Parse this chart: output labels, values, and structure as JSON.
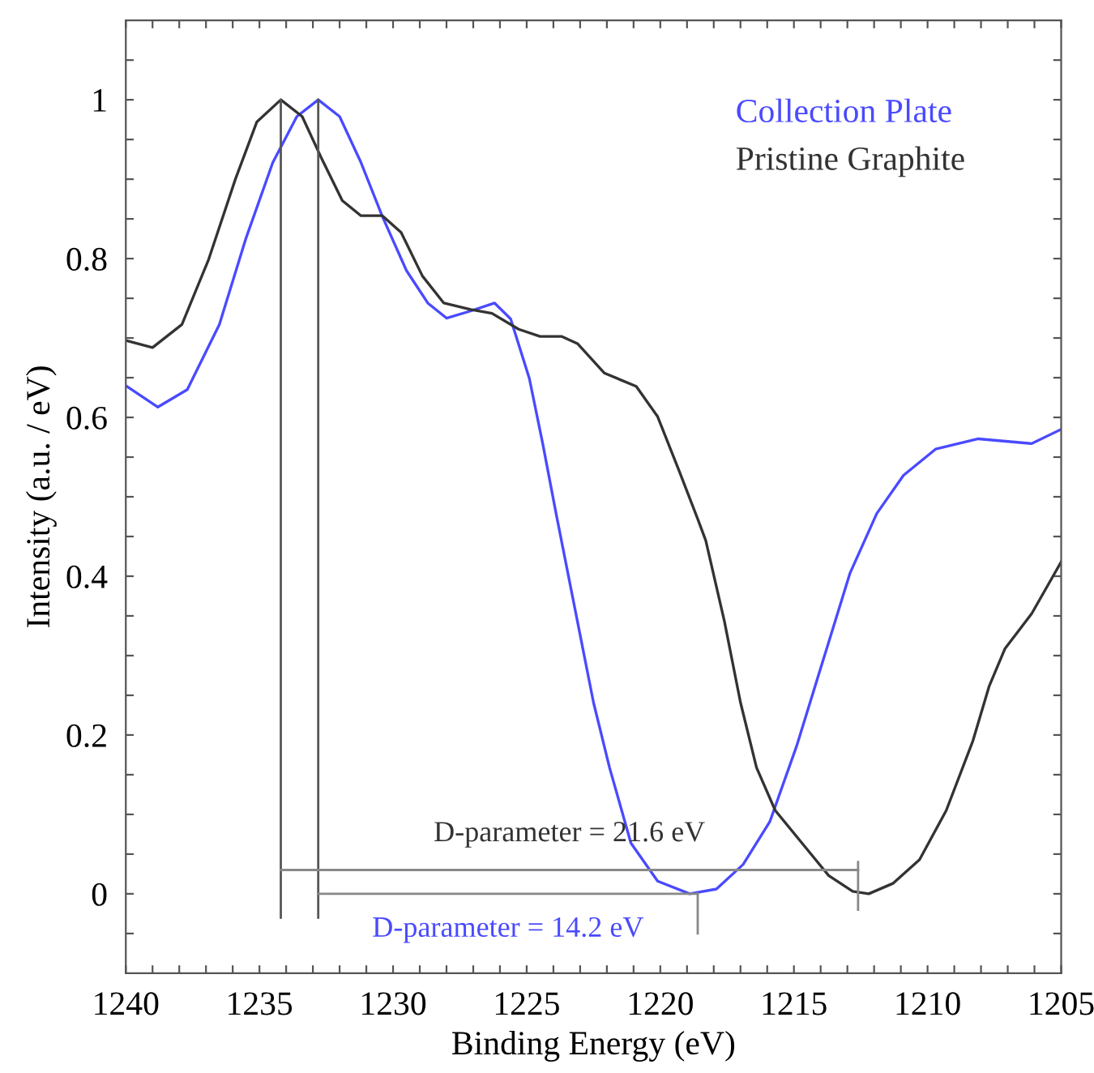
{
  "chart_data": {
    "type": "line",
    "xlabel": "Binding Energy (eV)",
    "ylabel": "Intensity (a.u. / eV)",
    "xlim": [
      1240,
      1205
    ],
    "ylim": [
      -0.1,
      1.1
    ],
    "xticks": [
      1240,
      {
        "value": 1239,
        "label": null
      },
      {
        "value": 1238,
        "label": null
      },
      {
        "value": 1237,
        "label": null
      },
      {
        "value": 1236,
        "label": null
      },
      1235,
      {
        "value": 1234,
        "label": null
      },
      {
        "value": 1233,
        "label": null
      },
      {
        "value": 1232,
        "label": null
      },
      {
        "value": 1231,
        "label": null
      },
      1230,
      {
        "value": 1229,
        "label": null
      },
      {
        "value": 1228,
        "label": null
      },
      {
        "value": 1227,
        "label": null
      },
      {
        "value": 1226,
        "label": null
      },
      1225,
      {
        "value": 1224,
        "label": null
      },
      {
        "value": 1223,
        "label": null
      },
      {
        "value": 1222,
        "label": null
      },
      {
        "value": 1221,
        "label": null
      },
      1220,
      {
        "value": 1219,
        "label": null
      },
      {
        "value": 1218,
        "label": null
      },
      {
        "value": 1217,
        "label": null
      },
      {
        "value": 1216,
        "label": null
      },
      1215,
      {
        "value": 1214,
        "label": null
      },
      {
        "value": 1213,
        "label": null
      },
      {
        "value": 1212,
        "label": null
      },
      {
        "value": 1211,
        "label": null
      },
      1210,
      {
        "value": 1209,
        "label": null
      },
      {
        "value": 1208,
        "label": null
      },
      {
        "value": 1207,
        "label": null
      },
      {
        "value": 1206,
        "label": null
      },
      1205
    ],
    "yticks": [
      {
        "value": -0.05,
        "label": null
      },
      0,
      {
        "value": 0.05,
        "label": null
      },
      {
        "value": 0.1,
        "label": null
      },
      {
        "value": 0.15,
        "label": null
      },
      0.2,
      {
        "value": 0.25,
        "label": null
      },
      {
        "value": 0.3,
        "label": null
      },
      {
        "value": 0.35,
        "label": null
      },
      0.4,
      {
        "value": 0.45,
        "label": null
      },
      {
        "value": 0.5,
        "label": null
      },
      {
        "value": 0.55,
        "label": null
      },
      0.6,
      {
        "value": 0.65,
        "label": null
      },
      {
        "value": 0.7,
        "label": null
      },
      {
        "value": 0.75,
        "label": null
      },
      0.8,
      {
        "value": 0.85,
        "label": null
      },
      {
        "value": 0.9,
        "label": null
      },
      {
        "value": 0.95,
        "label": null
      },
      1,
      {
        "value": 1.05,
        "label": null
      }
    ],
    "grid": false,
    "legend": "top right",
    "marker": "none",
    "line_style": "solid",
    "series": [
      {
        "name": "Collection Plate",
        "color": "#4a4aff",
        "x": [
          1240.0,
          1238.8,
          1237.7,
          1236.5,
          1235.5,
          1234.5,
          1233.6,
          1232.8,
          1232.0,
          1231.2,
          1230.4,
          1229.5,
          1228.7,
          1228.0,
          1227.1,
          1226.2,
          1225.6,
          1224.9,
          1224.4,
          1223.9,
          1223.1,
          1222.5,
          1221.9,
          1221.1,
          1220.1,
          1218.9,
          1217.9,
          1216.9,
          1215.9,
          1214.9,
          1213.9,
          1212.9,
          1211.9,
          1210.9,
          1209.7,
          1208.1,
          1206.1,
          1205.0
        ],
        "values": [
          0.64,
          0.613,
          0.635,
          0.717,
          0.826,
          0.921,
          0.979,
          1.0,
          0.979,
          0.921,
          0.853,
          0.785,
          0.744,
          0.725,
          0.734,
          0.744,
          0.724,
          0.649,
          0.567,
          0.479,
          0.343,
          0.241,
          0.159,
          0.064,
          0.016,
          0.0,
          0.006,
          0.037,
          0.091,
          0.186,
          0.295,
          0.404,
          0.479,
          0.527,
          0.56,
          0.573,
          0.567,
          0.585
        ]
      },
      {
        "name": "Pristine Graphite",
        "color": "#333333",
        "x": [
          1240.0,
          1239.0,
          1237.9,
          1236.9,
          1235.9,
          1235.1,
          1234.2,
          1233.4,
          1232.7,
          1231.9,
          1231.2,
          1230.4,
          1229.7,
          1228.9,
          1228.1,
          1227.1,
          1226.3,
          1225.3,
          1224.5,
          1223.7,
          1223.1,
          1222.1,
          1220.9,
          1220.1,
          1219.3,
          1218.6,
          1218.3,
          1217.6,
          1217.0,
          1216.4,
          1215.7,
          1214.7,
          1213.7,
          1212.8,
          1212.2,
          1211.3,
          1210.3,
          1209.3,
          1208.3,
          1207.7,
          1207.1,
          1206.1,
          1205.0
        ],
        "values": [
          0.697,
          0.688,
          0.717,
          0.799,
          0.9,
          0.972,
          1.0,
          0.979,
          0.928,
          0.873,
          0.854,
          0.854,
          0.833,
          0.778,
          0.744,
          0.736,
          0.731,
          0.711,
          0.702,
          0.702,
          0.693,
          0.656,
          0.639,
          0.601,
          0.533,
          0.472,
          0.445,
          0.343,
          0.241,
          0.159,
          0.105,
          0.064,
          0.023,
          0.003,
          0.0,
          0.013,
          0.043,
          0.105,
          0.193,
          0.261,
          0.309,
          0.353,
          0.418
        ]
      },
      {
        "color": "#555555",
        "x": [
          1234.2,
          1234.2
        ],
        "values": [
          1.0,
          -0.03
        ]
      },
      {
        "color": "#555555",
        "x": [
          1232.8,
          1232.8
        ],
        "values": [
          1.0,
          -0.03
        ]
      },
      {
        "color": "#888888",
        "x": [
          1234.2,
          1212.6
        ],
        "values": [
          0.03,
          0.03
        ]
      },
      {
        "color": "#888888",
        "x": [
          1212.6,
          1212.6
        ],
        "values": [
          0.04,
          -0.02
        ]
      },
      {
        "color": "#888888",
        "x": [
          1232.8,
          1218.6
        ],
        "values": [
          0.0,
          0.0
        ]
      },
      {
        "color": "#888888",
        "x": [
          1218.6,
          1218.6
        ],
        "values": [
          0.0,
          -0.05
        ]
      }
    ],
    "annotations": [
      "D-parameter = 21.6 eV",
      "D-parameter = 14.2 eV"
    ]
  }
}
